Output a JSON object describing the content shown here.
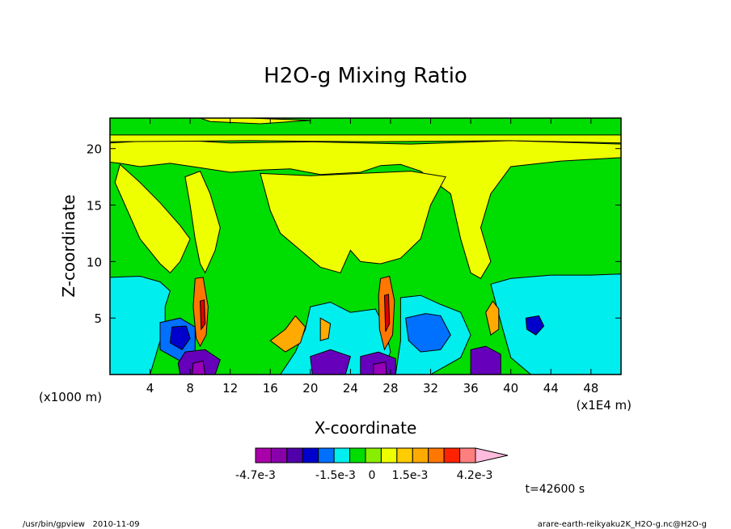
{
  "chart_data": {
    "type": "heatmap",
    "title": "H2O-g Mixing Ratio",
    "xlabel": "X-coordinate",
    "ylabel": "Z-coordinate",
    "x_unit_left": "(x1000 m)",
    "x_unit_right": "(x1E4 m)",
    "xlim": [
      0,
      51
    ],
    "ylim": [
      0,
      22.7
    ],
    "x_ticks": [
      4,
      8,
      12,
      16,
      20,
      24,
      28,
      32,
      36,
      40,
      44,
      48
    ],
    "y_ticks": [
      5,
      10,
      15,
      20
    ],
    "x_tick_labels": [
      "4",
      "8",
      "12",
      "16",
      "20",
      "24",
      "28",
      "32",
      "36",
      "40",
      "44",
      "48"
    ],
    "y_tick_labels": [
      "5",
      "10",
      "15",
      "20"
    ],
    "background_color": "#00dd00",
    "regions": [
      {
        "color": "#eeff00",
        "points": [
          [
            0,
            20.5
          ],
          [
            6,
            20.8
          ],
          [
            12,
            20.5
          ],
          [
            20,
            20.6
          ],
          [
            30,
            20.4
          ],
          [
            40,
            20.7
          ],
          [
            51,
            20.4
          ],
          [
            51,
            19.2
          ],
          [
            45,
            18.9
          ],
          [
            40,
            18.4
          ],
          [
            38,
            16
          ],
          [
            37,
            13
          ],
          [
            38,
            10
          ],
          [
            37,
            8.5
          ],
          [
            36,
            9
          ],
          [
            35,
            12
          ],
          [
            34,
            16
          ],
          [
            31,
            18
          ],
          [
            29,
            18.6
          ],
          [
            27,
            18.5
          ],
          [
            25,
            17.9
          ],
          [
            21,
            17.7
          ],
          [
            18,
            18.2
          ],
          [
            15,
            18.1
          ],
          [
            12,
            17.9
          ],
          [
            9,
            18.3
          ],
          [
            6,
            18.7
          ],
          [
            3,
            18.4
          ],
          [
            1,
            18.7
          ],
          [
            0,
            18.8
          ]
        ]
      },
      {
        "color": "#eeff00",
        "points": [
          [
            1,
            18.6
          ],
          [
            3,
            17
          ],
          [
            5,
            15.2
          ],
          [
            7,
            13.2
          ],
          [
            8,
            12
          ],
          [
            7,
            10
          ],
          [
            6,
            9
          ],
          [
            5,
            9.8
          ],
          [
            3,
            12
          ],
          [
            1.5,
            15
          ],
          [
            0.5,
            17
          ]
        ]
      },
      {
        "color": "#eeff00",
        "points": [
          [
            9,
            18
          ],
          [
            10,
            16
          ],
          [
            11,
            13
          ],
          [
            10.5,
            11
          ],
          [
            9.5,
            9
          ],
          [
            9,
            9.8
          ],
          [
            8.5,
            12
          ],
          [
            8,
            15
          ],
          [
            7.5,
            17.5
          ]
        ]
      },
      {
        "color": "#eeff00",
        "points": [
          [
            15,
            17.8
          ],
          [
            16,
            14.5
          ],
          [
            17,
            12.5
          ],
          [
            19,
            11
          ],
          [
            21,
            9.5
          ],
          [
            23,
            9
          ],
          [
            24,
            11
          ],
          [
            25,
            10
          ],
          [
            27,
            9.8
          ],
          [
            29,
            10.3
          ],
          [
            31,
            12
          ],
          [
            32,
            15
          ],
          [
            33.5,
            17.5
          ],
          [
            30,
            18
          ],
          [
            25,
            17.8
          ],
          [
            20,
            17.6
          ]
        ]
      },
      {
        "color": "#eeff00",
        "points": [
          [
            0,
            20.6
          ],
          [
            14,
            20.7
          ],
          [
            26,
            20.6
          ],
          [
            40,
            20.7
          ],
          [
            51,
            20.5
          ],
          [
            51,
            21.2
          ],
          [
            0,
            21.2
          ]
        ]
      },
      {
        "color": "#eeff00",
        "points": [
          [
            10,
            22.4
          ],
          [
            15,
            22.2
          ],
          [
            20,
            22.5
          ],
          [
            14,
            22.7
          ],
          [
            9,
            22.7
          ]
        ]
      },
      {
        "color": "#00eeee",
        "points": [
          [
            0,
            8.6
          ],
          [
            3,
            8.7
          ],
          [
            5,
            8.2
          ],
          [
            6,
            7.4
          ],
          [
            5.5,
            6
          ],
          [
            5.5,
            4.5
          ],
          [
            5,
            3
          ],
          [
            4.5,
            1.5
          ],
          [
            4,
            0
          ],
          [
            0,
            0
          ]
        ]
      },
      {
        "color": "#00eeee",
        "points": [
          [
            38,
            8
          ],
          [
            40,
            8.5
          ],
          [
            44,
            8.8
          ],
          [
            48,
            8.8
          ],
          [
            51,
            8.9
          ],
          [
            51,
            0
          ],
          [
            42,
            0
          ],
          [
            40,
            1.5
          ],
          [
            39.2,
            4
          ],
          [
            38.6,
            6
          ]
        ]
      },
      {
        "color": "#00eeee",
        "points": [
          [
            20,
            6
          ],
          [
            22,
            6.4
          ],
          [
            24,
            5.5
          ],
          [
            26.5,
            5.8
          ],
          [
            27.5,
            4
          ],
          [
            28,
            2
          ],
          [
            27,
            0
          ],
          [
            17,
            0
          ],
          [
            18.5,
            2
          ],
          [
            19.5,
            4
          ]
        ]
      },
      {
        "color": "#00eeee",
        "points": [
          [
            29,
            6.8
          ],
          [
            31,
            7
          ],
          [
            33,
            6.2
          ],
          [
            35,
            5.5
          ],
          [
            36,
            3.5
          ],
          [
            35,
            1.5
          ],
          [
            32,
            0
          ],
          [
            28.5,
            0
          ],
          [
            29,
            3
          ]
        ]
      },
      {
        "color": "#0070ff",
        "points": [
          [
            5,
            4.6
          ],
          [
            7,
            5
          ],
          [
            8.5,
            4.2
          ],
          [
            8.5,
            2
          ],
          [
            7,
            1.2
          ],
          [
            5,
            2.2
          ]
        ]
      },
      {
        "color": "#0070ff",
        "points": [
          [
            29.5,
            5
          ],
          [
            31.5,
            5.4
          ],
          [
            33,
            5.2
          ],
          [
            34,
            3.5
          ],
          [
            33,
            2.2
          ],
          [
            31,
            2
          ],
          [
            29.8,
            3
          ]
        ]
      },
      {
        "color": "#0000cc",
        "points": [
          [
            6.2,
            4.2
          ],
          [
            7.6,
            4.3
          ],
          [
            8,
            3.2
          ],
          [
            7.2,
            2.2
          ],
          [
            6,
            2.8
          ]
        ]
      },
      {
        "color": "#0000cc",
        "points": [
          [
            41.5,
            5
          ],
          [
            42.8,
            5.2
          ],
          [
            43.3,
            4.3
          ],
          [
            42.5,
            3.5
          ],
          [
            41.6,
            4
          ]
        ]
      },
      {
        "color": "#ffaa00",
        "points": [
          [
            16,
            3
          ],
          [
            17.5,
            4
          ],
          [
            18.5,
            5.2
          ],
          [
            19.5,
            4.2
          ],
          [
            19,
            2.8
          ],
          [
            17.5,
            2
          ]
        ]
      },
      {
        "color": "#ffaa00",
        "points": [
          [
            37.5,
            5.5
          ],
          [
            38.2,
            6.5
          ],
          [
            38.8,
            5.8
          ],
          [
            38.8,
            4
          ],
          [
            38,
            3.5
          ]
        ]
      },
      {
        "color": "#ffaa00",
        "points": [
          [
            21,
            5
          ],
          [
            22,
            4.5
          ],
          [
            21.8,
            3.2
          ],
          [
            21,
            3
          ]
        ]
      },
      {
        "color": "#ff7700",
        "points": [
          [
            8.5,
            8.5
          ],
          [
            9.3,
            8.6
          ],
          [
            9.8,
            6
          ],
          [
            9.6,
            3.5
          ],
          [
            9,
            2.5
          ],
          [
            8.6,
            3.2
          ],
          [
            8.3,
            6
          ]
        ]
      },
      {
        "color": "#ff7700",
        "points": [
          [
            27,
            8.5
          ],
          [
            27.9,
            8.7
          ],
          [
            28.4,
            6.5
          ],
          [
            28.2,
            3.5
          ],
          [
            27.4,
            2.2
          ],
          [
            26.9,
            4
          ],
          [
            26.8,
            7
          ]
        ]
      },
      {
        "color": "#dd0000",
        "points": [
          [
            9,
            6.5
          ],
          [
            9.4,
            6.6
          ],
          [
            9.5,
            4.5
          ],
          [
            9.1,
            4
          ]
        ]
      },
      {
        "color": "#dd0000",
        "points": [
          [
            27.4,
            7
          ],
          [
            27.8,
            7.1
          ],
          [
            27.9,
            4.5
          ],
          [
            27.5,
            3.8
          ]
        ]
      },
      {
        "color": "#6600bb",
        "points": [
          [
            7.5,
            2
          ],
          [
            9.5,
            2.2
          ],
          [
            11,
            1.3
          ],
          [
            10.5,
            0
          ],
          [
            7,
            0
          ],
          [
            6.8,
            1
          ]
        ]
      },
      {
        "color": "#6600bb",
        "points": [
          [
            20,
            1.6
          ],
          [
            22,
            2.2
          ],
          [
            24,
            1.6
          ],
          [
            23.5,
            0
          ],
          [
            20.2,
            0
          ]
        ]
      },
      {
        "color": "#6600bb",
        "points": [
          [
            25,
            1.6
          ],
          [
            26.8,
            2
          ],
          [
            28.5,
            1.4
          ],
          [
            28.5,
            0
          ],
          [
            25,
            0
          ]
        ]
      },
      {
        "color": "#6600bb",
        "points": [
          [
            36,
            2.2
          ],
          [
            37.5,
            2.5
          ],
          [
            39,
            1.8
          ],
          [
            39,
            0
          ],
          [
            36,
            0
          ]
        ]
      },
      {
        "color": "#9900bb",
        "points": [
          [
            8.3,
            1
          ],
          [
            9.3,
            1.2
          ],
          [
            9.5,
            0
          ],
          [
            8.2,
            0
          ]
        ]
      },
      {
        "color": "#9900bb",
        "points": [
          [
            26.3,
            0.9
          ],
          [
            27.5,
            1.1
          ],
          [
            27.6,
            0
          ],
          [
            26.3,
            0
          ]
        ]
      }
    ],
    "colorbar": {
      "colors": [
        "#aa00aa",
        "#8800aa",
        "#5000aa",
        "#0000cc",
        "#0070ff",
        "#00eeee",
        "#00dd00",
        "#88ee00",
        "#eeff00",
        "#ffcc00",
        "#ffaa00",
        "#ff7700",
        "#ff2200",
        "#ff7f7f",
        "#ffbbdd"
      ],
      "labels": [
        "-4.7e-3",
        "-1.5e-3",
        "0",
        "1.5e-3",
        "4.2e-3"
      ]
    },
    "time_label": "t=42600 s"
  },
  "footer": {
    "left": "/usr/bin/gpview   2010-11-09",
    "right": "arare-earth-reikyaku2K_H2O-g.nc@H2O-g"
  }
}
